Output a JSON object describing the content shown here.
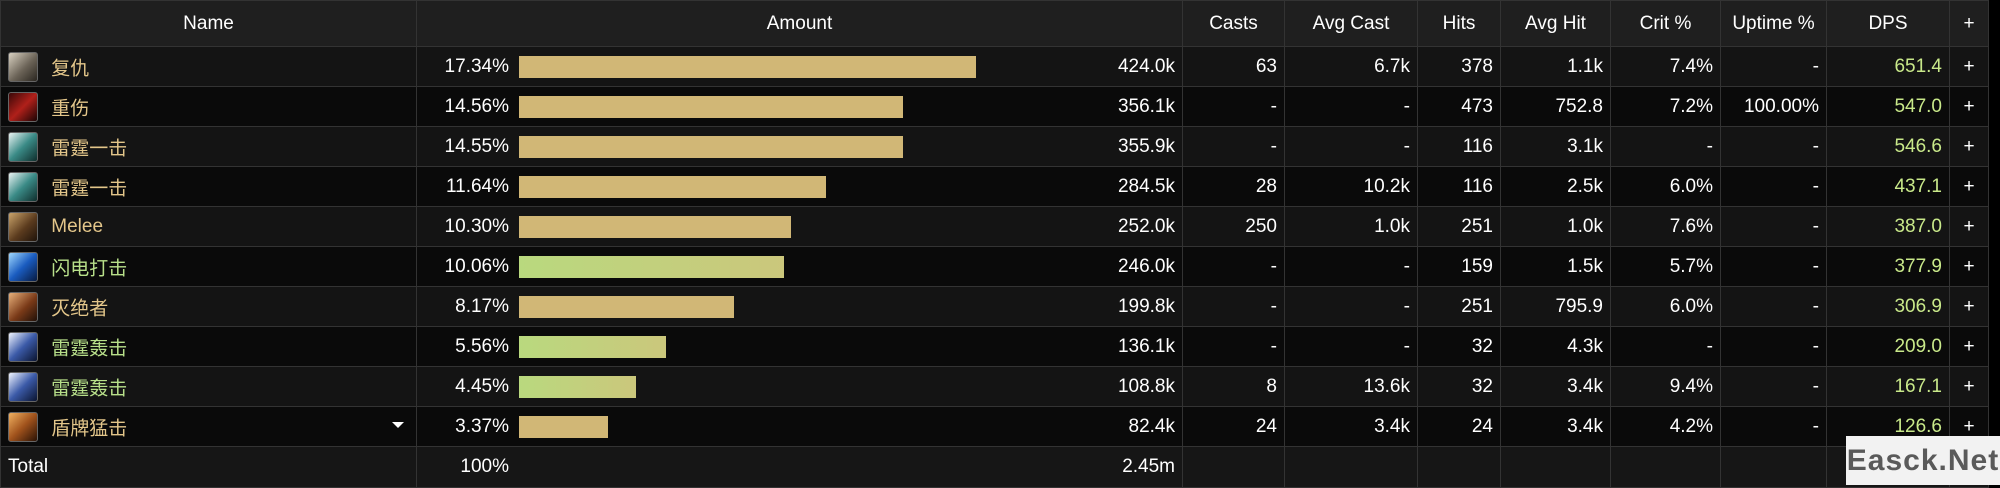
{
  "headers": {
    "name": "Name",
    "amount": "Amount",
    "casts": "Casts",
    "avg_cast": "Avg Cast",
    "hits": "Hits",
    "avg_hit": "Avg Hit",
    "crit": "Crit %",
    "uptime": "Uptime %",
    "dps": "DPS",
    "plus": "+"
  },
  "rows": [
    {
      "icon": "face-portrait-icon",
      "name": "复仇",
      "pct": "17.34%",
      "share": 17.34,
      "bar": "gold",
      "amount": "424.0k",
      "casts": "63",
      "avg_cast": "6.7k",
      "hits": "378",
      "avg_hit": "1.1k",
      "crit": "7.4%",
      "uptime": "-",
      "dps": "651.4",
      "plus": "+",
      "color": "gold"
    },
    {
      "icon": "bloody-wound-icon",
      "name": "重伤",
      "pct": "14.56%",
      "share": 14.56,
      "bar": "gold",
      "amount": "356.1k",
      "casts": "-",
      "avg_cast": "-",
      "hits": "473",
      "avg_hit": "752.8",
      "crit": "7.2%",
      "uptime": "100.00%",
      "dps": "547.0",
      "plus": "+",
      "color": "gold"
    },
    {
      "icon": "thunderclap-icon",
      "name": "雷霆一击",
      "pct": "14.55%",
      "share": 14.55,
      "bar": "gold",
      "amount": "355.9k",
      "casts": "-",
      "avg_cast": "-",
      "hits": "116",
      "avg_hit": "3.1k",
      "crit": "-",
      "uptime": "-",
      "dps": "546.6",
      "plus": "+",
      "color": "gold"
    },
    {
      "icon": "thunderclap-icon",
      "name": "雷霆一击",
      "pct": "11.64%",
      "share": 11.64,
      "bar": "gold",
      "amount": "284.5k",
      "casts": "28",
      "avg_cast": "10.2k",
      "hits": "116",
      "avg_hit": "2.5k",
      "crit": "6.0%",
      "uptime": "-",
      "dps": "437.1",
      "plus": "+",
      "color": "gold"
    },
    {
      "icon": "melee-swords-icon",
      "name": "Melee",
      "pct": "10.30%",
      "share": 10.3,
      "bar": "gold",
      "amount": "252.0k",
      "casts": "250",
      "avg_cast": "1.0k",
      "hits": "251",
      "avg_hit": "1.0k",
      "crit": "7.6%",
      "uptime": "-",
      "dps": "387.0",
      "plus": "+",
      "color": "gold"
    },
    {
      "icon": "lightning-strike-icon",
      "name": "闪电打击",
      "pct": "10.06%",
      "share": 10.06,
      "bar": "green",
      "amount": "246.0k",
      "casts": "-",
      "avg_cast": "-",
      "hits": "159",
      "avg_hit": "1.5k",
      "crit": "5.7%",
      "uptime": "-",
      "dps": "377.9",
      "plus": "+",
      "color": "green"
    },
    {
      "icon": "annihilator-blade-icon",
      "name": "灭绝者",
      "pct": "8.17%",
      "share": 8.17,
      "bar": "gold",
      "amount": "199.8k",
      "casts": "-",
      "avg_cast": "-",
      "hits": "251",
      "avg_hit": "795.9",
      "crit": "6.0%",
      "uptime": "-",
      "dps": "306.9",
      "plus": "+",
      "color": "gold"
    },
    {
      "icon": "thunder-blast-icon",
      "name": "雷霆轰击",
      "pct": "5.56%",
      "share": 5.56,
      "bar": "green",
      "amount": "136.1k",
      "casts": "-",
      "avg_cast": "-",
      "hits": "32",
      "avg_hit": "4.3k",
      "crit": "-",
      "uptime": "-",
      "dps": "209.0",
      "plus": "+",
      "color": "green"
    },
    {
      "icon": "thunder-blast-icon",
      "name": "雷霆轰击",
      "pct": "4.45%",
      "share": 4.45,
      "bar": "green",
      "amount": "108.8k",
      "casts": "8",
      "avg_cast": "13.6k",
      "hits": "32",
      "avg_hit": "3.4k",
      "crit": "9.4%",
      "uptime": "-",
      "dps": "167.1",
      "plus": "+",
      "color": "green"
    },
    {
      "icon": "shield-slam-icon",
      "name": "盾牌猛击",
      "pct": "3.37%",
      "share": 3.37,
      "bar": "gold",
      "amount": "82.4k",
      "casts": "24",
      "avg_cast": "3.4k",
      "hits": "24",
      "avg_hit": "3.4k",
      "crit": "4.2%",
      "uptime": "-",
      "dps": "126.6",
      "plus": "+",
      "color": "gold",
      "dropdown": true
    }
  ],
  "total": {
    "label": "Total",
    "pct": "100%",
    "amount": "2.45m"
  },
  "watermark": "Easck.Net"
}
